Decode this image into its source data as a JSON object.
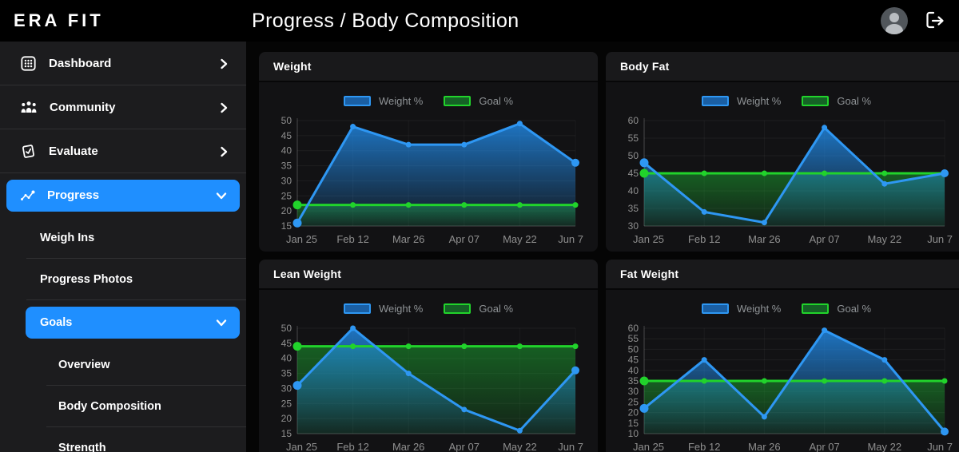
{
  "header": {
    "logo": "ERA FIT",
    "title": "Progress / Body Composition"
  },
  "sidebar": {
    "items": [
      {
        "label": "Dashboard",
        "icon": "dashboard-icon",
        "chevron": "right",
        "active": false,
        "level": 0
      },
      {
        "label": "Community",
        "icon": "community-icon",
        "chevron": "right",
        "active": false,
        "level": 0
      },
      {
        "label": "Evaluate",
        "icon": "evaluate-icon",
        "chevron": "right",
        "active": false,
        "level": 0
      },
      {
        "label": "Progress",
        "icon": "progress-icon",
        "chevron": "down",
        "active": true,
        "level": 0
      },
      {
        "label": "Weigh Ins",
        "level": 1
      },
      {
        "label": "Progress Photos",
        "level": 1
      },
      {
        "label": "Goals",
        "chevron": "down",
        "active": true,
        "level": 1
      },
      {
        "label": "Overview",
        "level": 2
      },
      {
        "label": "Body Composition",
        "level": 2
      },
      {
        "label": "Strength",
        "level": 2
      }
    ]
  },
  "colors": {
    "accent_blue": "#1f8fff",
    "series_blue": "#2e97f3",
    "series_green": "#21d32b",
    "tick_text": "#8f8f8f"
  },
  "chart_data": [
    {
      "type": "line",
      "title": "Weight",
      "categories": [
        "Jan 25",
        "Feb 12",
        "Mar 26",
        "Apr 07",
        "May 22",
        "Jun 7"
      ],
      "series": [
        {
          "name": "Weight %",
          "color": "#2e97f3",
          "values": [
            16,
            48,
            42,
            42,
            49,
            36
          ]
        },
        {
          "name": "Goal %",
          "color": "#21d32b",
          "values": [
            22,
            22,
            22,
            22,
            22,
            22
          ]
        }
      ],
      "ylim": [
        15,
        50
      ],
      "ytick_step": 5,
      "grid": true,
      "legend_position": "top",
      "area_fill": true
    },
    {
      "type": "line",
      "title": "Body Fat",
      "categories": [
        "Jan 25",
        "Feb 12",
        "Mar 26",
        "Apr 07",
        "May 22",
        "Jun 7"
      ],
      "series": [
        {
          "name": "Weight %",
          "color": "#2e97f3",
          "values": [
            48,
            34,
            31,
            58,
            42,
            45
          ]
        },
        {
          "name": "Goal %",
          "color": "#21d32b",
          "values": [
            45,
            45,
            45,
            45,
            45,
            45
          ]
        }
      ],
      "ylim": [
        30,
        60
      ],
      "ytick_step": 5,
      "grid": true,
      "legend_position": "top",
      "area_fill": true
    },
    {
      "type": "line",
      "title": "Lean Weight",
      "categories": [
        "Jan 25",
        "Feb 12",
        "Mar 26",
        "Apr 07",
        "May 22",
        "Jun 7"
      ],
      "series": [
        {
          "name": "Weight %",
          "color": "#2e97f3",
          "values": [
            31,
            50,
            35,
            23,
            16,
            36
          ]
        },
        {
          "name": "Goal %",
          "color": "#21d32b",
          "values": [
            44,
            44,
            44,
            44,
            44,
            44
          ]
        }
      ],
      "ylim": [
        15,
        50
      ],
      "ytick_step": 5,
      "grid": true,
      "legend_position": "top",
      "area_fill": true
    },
    {
      "type": "line",
      "title": "Fat Weight",
      "categories": [
        "Jan 25",
        "Feb 12",
        "Mar 26",
        "Apr 07",
        "May 22",
        "Jun 7"
      ],
      "series": [
        {
          "name": "Weight %",
          "color": "#2e97f3",
          "values": [
            22,
            45,
            18,
            59,
            45,
            11
          ]
        },
        {
          "name": "Goal %",
          "color": "#21d32b",
          "values": [
            35,
            35,
            35,
            35,
            35,
            35
          ]
        }
      ],
      "ylim": [
        10,
        60
      ],
      "ytick_step": 5,
      "grid": true,
      "legend_position": "top",
      "area_fill": true
    }
  ]
}
